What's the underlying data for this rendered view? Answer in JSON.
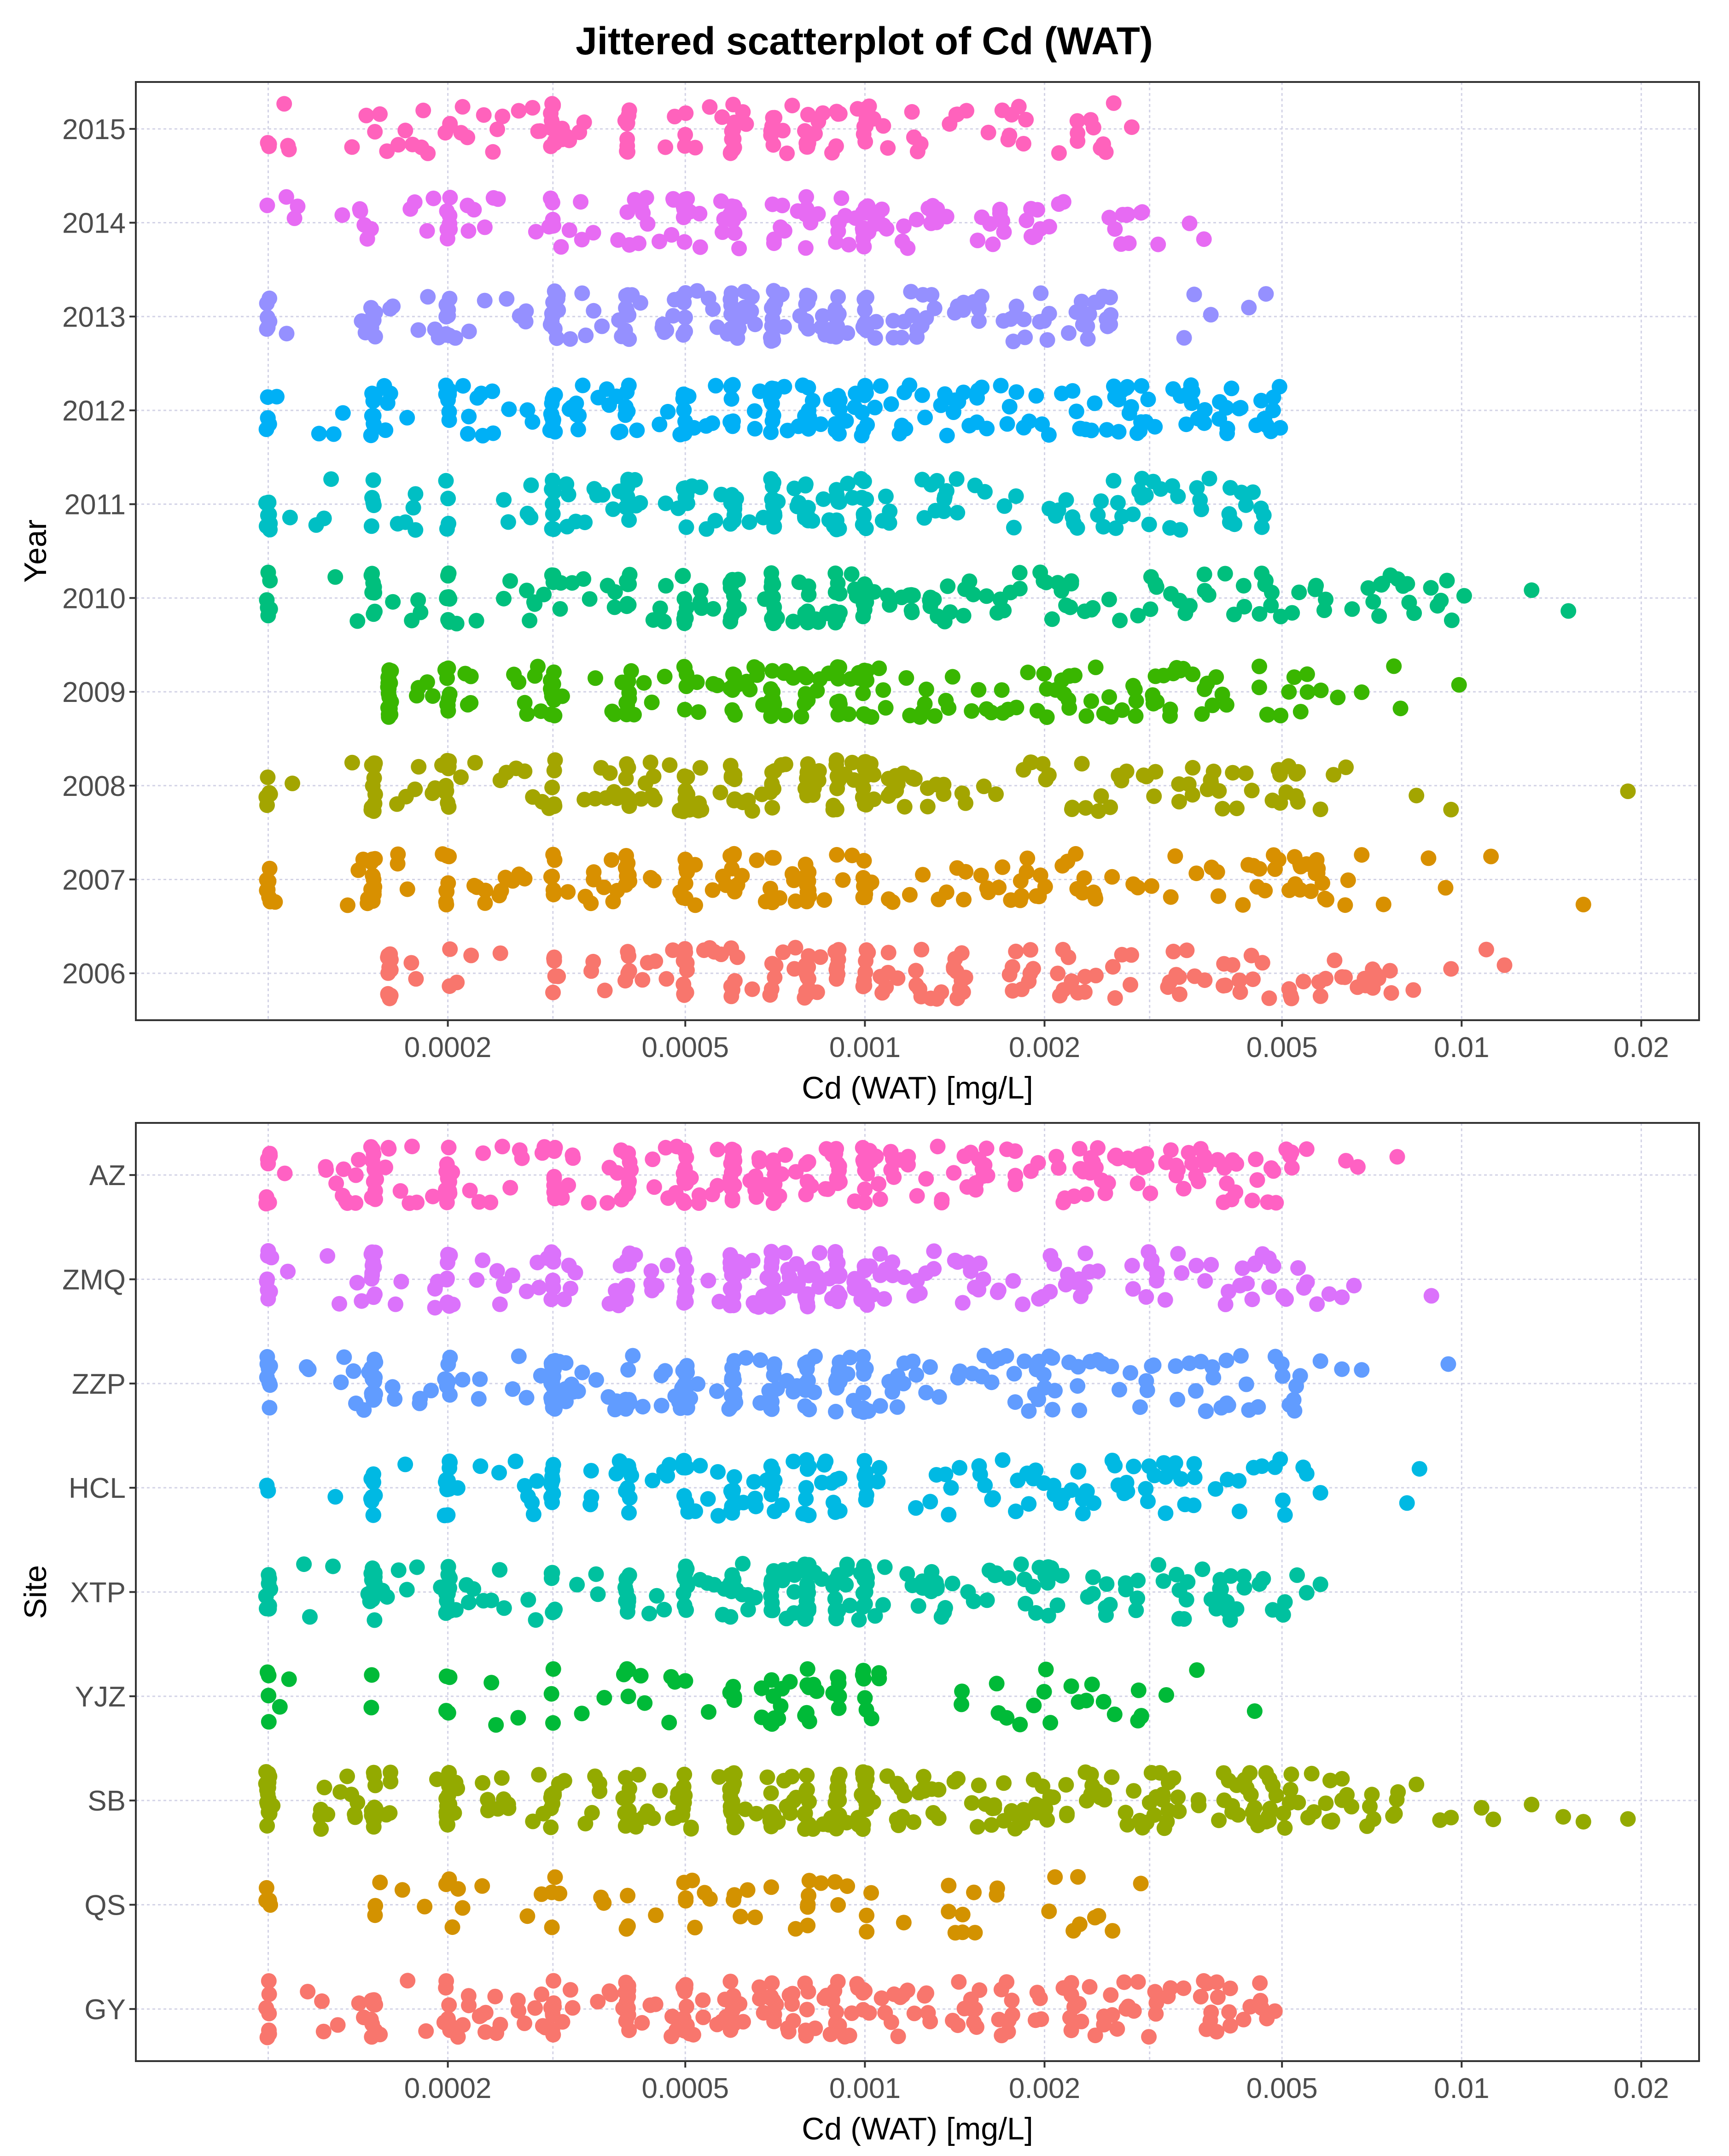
{
  "chart_data": {
    "type": "scatter",
    "title": "Jittered scatterplot of Cd (WAT)",
    "x_scale": "log10",
    "x_ticks": [
      0.0002,
      0.0005,
      0.001,
      0.002,
      0.005,
      0.01,
      0.02
    ],
    "x_tick_labels": [
      "0.0002",
      "0.0005",
      "0.001",
      "0.002",
      "0.005",
      "0.01",
      "0.02"
    ],
    "xlim": [
      6e-05,
      0.025
    ],
    "grid": true,
    "legend": "none",
    "panels": [
      {
        "id": "year",
        "xlabel": "Cd (WAT) [mg/L]",
        "ylabel": "Year",
        "categories": [
          "2006",
          "2007",
          "2008",
          "2009",
          "2010",
          "2011",
          "2012",
          "2013",
          "2014",
          "2015"
        ],
        "colors": [
          "#F8766D",
          "#D89000",
          "#A3A500",
          "#39B600",
          "#00BF7D",
          "#00BFC4",
          "#00B0F6",
          "#9590FF",
          "#E76BF3",
          "#FF62BC"
        ],
        "series": [
          {
            "name": "2006",
            "min": 0.00016,
            "max": 0.0118,
            "n": 180,
            "outliers": [
              0.0083,
              0.0096,
              0.011,
              0.0118
            ]
          },
          {
            "name": "2007",
            "min": 0.0001,
            "max": 0.016,
            "n": 200,
            "outliers": [
              0.0068,
              0.0074,
              0.0088,
              0.0094,
              0.0112,
              0.016
            ]
          },
          {
            "name": "2008",
            "min": 0.0001,
            "max": 0.019,
            "n": 210,
            "outliers": [
              0.0058,
              0.0061,
              0.0064,
              0.0084,
              0.0096,
              0.019
            ]
          },
          {
            "name": "2009",
            "min": 0.00016,
            "max": 0.0099,
            "n": 210,
            "outliers": [
              0.0062,
              0.0068,
              0.0077,
              0.0079,
              0.0099
            ]
          },
          {
            "name": "2010",
            "min": 0.0001,
            "max": 0.0151,
            "n": 220,
            "outliers": [
              0.0101,
              0.0131,
              0.0151
            ]
          },
          {
            "name": "2011",
            "min": 0.0001,
            "max": 0.0049,
            "n": 190,
            "outliers": []
          },
          {
            "name": "2012",
            "min": 0.0001,
            "max": 0.005,
            "n": 230,
            "outliers": []
          },
          {
            "name": "2013",
            "min": 0.0001,
            "max": 0.0049,
            "n": 200,
            "outliers": [
              0.0038,
              0.0044,
              0.0047
            ]
          },
          {
            "name": "2014",
            "min": 0.0001,
            "max": 0.0039,
            "n": 150,
            "outliers": [
              0.0031,
              0.0035,
              0.0037
            ]
          },
          {
            "name": "2015",
            "min": 0.0001,
            "max": 0.0028,
            "n": 140,
            "outliers": [
              0.0028
            ]
          }
        ]
      },
      {
        "id": "site",
        "xlabel": "Cd (WAT) [mg/L]",
        "ylabel": "Site",
        "categories": [
          "GY",
          "QS",
          "SB",
          "YJZ",
          "XTP",
          "HCL",
          "ZZP",
          "ZMQ",
          "AZ"
        ],
        "colors": [
          "#F8766D",
          "#D39200",
          "#93AA00",
          "#00BA38",
          "#00C19F",
          "#00B9E3",
          "#619CFF",
          "#DB72FB",
          "#FF61C3"
        ],
        "series": [
          {
            "name": "GY",
            "min": 0.0001,
            "max": 0.0049,
            "n": 240,
            "outliers": []
          },
          {
            "name": "QS",
            "min": 0.0001,
            "max": 0.0029,
            "n": 70,
            "outliers": [
              0.0026,
              0.0029
            ]
          },
          {
            "name": "SB",
            "min": 0.0001,
            "max": 0.019,
            "n": 330,
            "outliers": [
              0.0084,
              0.0092,
              0.0096,
              0.0108,
              0.0113,
              0.0131,
              0.0148,
              0.016,
              0.019
            ]
          },
          {
            "name": "YJZ",
            "min": 0.0001,
            "max": 0.0045,
            "n": 90,
            "outliers": [
              0.0032,
              0.0036,
              0.0045
            ]
          },
          {
            "name": "XTP",
            "min": 0.0001,
            "max": 0.0058,
            "n": 240,
            "outliers": [
              0.0053,
              0.0055,
              0.0058
            ]
          },
          {
            "name": "HCL",
            "min": 0.0001,
            "max": 0.0085,
            "n": 190,
            "outliers": [
              0.0058,
              0.0081,
              0.0085
            ]
          },
          {
            "name": "ZZP",
            "min": 0.0001,
            "max": 0.0095,
            "n": 250,
            "outliers": [
              0.0058,
              0.0063,
              0.0068,
              0.0095
            ]
          },
          {
            "name": "ZMQ",
            "min": 0.0001,
            "max": 0.0089,
            "n": 250,
            "outliers": [
              0.006,
              0.0063,
              0.0066,
              0.0089
            ]
          },
          {
            "name": "AZ",
            "min": 0.0001,
            "max": 0.0078,
            "n": 270,
            "outliers": [
              0.0055,
              0.0064,
              0.0067,
              0.0078
            ]
          }
        ]
      }
    ]
  }
}
